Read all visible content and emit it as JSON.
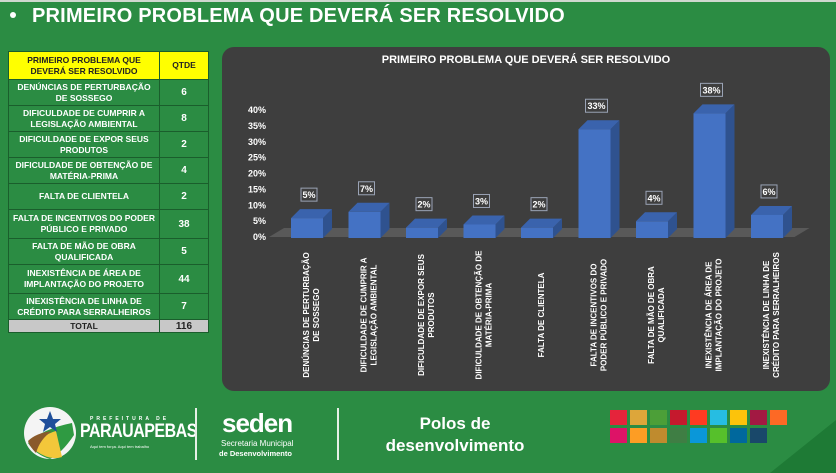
{
  "page": {
    "heading": "PRIMEIRO PROBLEMA QUE DEVERÁ SER RESOLVIDO"
  },
  "table": {
    "header": {
      "problem": "PRIMEIRO PROBLEMA QUE DEVERÁ SER RESOLVIDO",
      "qty": "QTDE"
    },
    "rows": [
      {
        "label": "DENÚNCIAS DE PERTURBAÇÃO DE SOSSEGO",
        "qty": "6"
      },
      {
        "label": "DIFICULDADE DE CUMPRIR A LEGISLAÇÃO AMBIENTAL",
        "qty": "8"
      },
      {
        "label": "DIFICULDADE DE EXPOR SEUS PRODUTOS",
        "qty": "2"
      },
      {
        "label": "DIFICULDADE DE OBTENÇÃO DE MATÉRIA-PRIMA",
        "qty": "4"
      },
      {
        "label": "FALTA DE CLIENTELA",
        "qty": "2"
      },
      {
        "label": "FALTA DE INCENTIVOS DO PODER PÚBLICO E PRIVADO",
        "qty": "38"
      },
      {
        "label": "FALTA DE MÃO DE OBRA QUALIFICADA",
        "qty": "5"
      },
      {
        "label": "INEXISTÊNCIA DE ÁREA DE IMPLANTAÇÃO DO PROJETO",
        "qty": "44"
      },
      {
        "label": "INEXISTÊNCIA DE LINHA DE CRÉDITO PARA SERRALHEIROS",
        "qty": "7"
      }
    ],
    "total": {
      "label": "TOTAL",
      "qty": "116"
    }
  },
  "chart_data": {
    "type": "bar",
    "title": "PRIMEIRO PROBLEMA QUE DEVERÁ SER RESOLVIDO",
    "categories": [
      [
        "DENÚNCIAS DE PERTURBAÇÃO",
        "DE SOSSEGO"
      ],
      [
        "DIFICULDADE DE CUMPRIR A",
        "LEGISLAÇÃO AMBIENTAL"
      ],
      [
        "DIFICULDADE DE EXPOR SEUS",
        "PRODUTOS"
      ],
      [
        "DIFICULDADE DE OBTENÇÃO DE",
        "MATÉRIA-PRIMA"
      ],
      [
        "FALTA DE CLIENTELA"
      ],
      [
        "FALTA DE INCENTIVOS DO",
        "PODER PÚBLICO E PRIVADO"
      ],
      [
        "FALTA DE MÃO DE OBRA",
        "QUALIFICADA"
      ],
      [
        "INEXISTÊNCIA DE ÁREA DE",
        "IMPLANTAÇÃO DO PROJETO"
      ],
      [
        "INEXISTÊNCIA DE LINHA DE",
        "CRÉDITO PARA SERRALHEIROS"
      ]
    ],
    "values": [
      5,
      7,
      2,
      3,
      2,
      33,
      4,
      38,
      6
    ],
    "data_labels": [
      "5%",
      "7%",
      "2%",
      "3%",
      "2%",
      "33%",
      "4%",
      "38%",
      "6%"
    ],
    "yticks": [
      "0%",
      "5%",
      "10%",
      "15%",
      "20%",
      "25%",
      "30%",
      "35%",
      "40%"
    ],
    "ylim": [
      0,
      40
    ],
    "xlabel": "",
    "ylabel": "",
    "grid": false,
    "legend": "none",
    "colors": {
      "bar_front": "#4472c4",
      "bar_side": "#2f528f",
      "bar_top": "#3a63ad",
      "floor": "#595959",
      "background": "#3e3e3e"
    }
  },
  "footer": {
    "prefeitura_top": "PREFEITURA DE",
    "prefeitura_name": "PARAUAPEBAS",
    "prefeitura_slogan": "Aqui tem força. Aqui tem trabalho",
    "seden_name": "seden",
    "seden_line1": "Secretaria Municipal",
    "seden_line2": "de Desenvolvimento",
    "polos_line1": "Polos de",
    "polos_line2": "desenvolvimento",
    "sdg_colors": [
      "#e5243b",
      "#dda63a",
      "#4c9f38",
      "#c5192d",
      "#ff3a21",
      "#26bde2",
      "#fcc30b",
      "#a21942",
      "#fd6925",
      "#dd1367",
      "#fd9d24",
      "#bf8b2e",
      "#3f7e44",
      "#0a97d9",
      "#56c02b",
      "#00689d",
      "#19486a",
      "#2b8c43"
    ]
  }
}
